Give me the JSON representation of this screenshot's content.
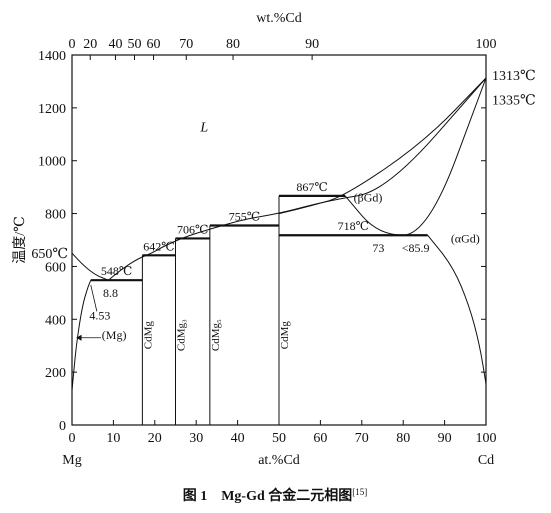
{
  "chart_data": {
    "type": "line",
    "title": "",
    "caption": "图 1　Mg-Gd 合金二元相图",
    "caption_ref": "[15]",
    "xlabel": "at.%Cd",
    "x2label": "wt.%Cd",
    "ylabel": "温度/℃",
    "xlim": [
      0,
      100
    ],
    "ylim": [
      0,
      1400
    ],
    "left_element": "Mg",
    "right_element": "Cd",
    "x_ticks": [
      0,
      10,
      20,
      30,
      40,
      50,
      60,
      70,
      80,
      90,
      100
    ],
    "y_ticks": [
      0,
      200,
      400,
      600,
      800,
      1000,
      1200,
      1400
    ],
    "x2_ticks": [
      {
        "label": "0",
        "at": 0
      },
      {
        "label": "20",
        "at": 4.4
      },
      {
        "label": "40",
        "at": 10.5
      },
      {
        "label": "50",
        "at": 15.1
      },
      {
        "label": "60",
        "at": 19.7
      },
      {
        "label": "70",
        "at": 27.6
      },
      {
        "label": "80",
        "at": 38.9
      },
      {
        "label": "90",
        "at": 58.0
      },
      {
        "label": "100",
        "at": 100
      }
    ],
    "series": [
      {
        "values": [
          [
            0,
            650
          ],
          [
            3,
            600
          ],
          [
            6,
            565
          ],
          [
            8.8,
            548
          ]
        ]
      },
      {
        "values": [
          [
            8.8,
            548
          ],
          [
            12,
            590
          ],
          [
            16,
            630
          ],
          [
            19,
            648
          ],
          [
            22,
            675
          ],
          [
            27,
            710
          ],
          [
            33,
            740
          ],
          [
            42,
            780
          ],
          [
            50,
            800
          ],
          [
            62,
            850
          ],
          [
            76,
            885
          ],
          [
            100,
            1313
          ]
        ]
      },
      {
        "values": [
          [
            50,
            800
          ],
          [
            58,
            830
          ],
          [
            66,
            867
          ],
          [
            85,
            1070
          ],
          [
            100,
            1313
          ]
        ]
      },
      {
        "values": [
          [
            66,
            867
          ],
          [
            74,
            718
          ],
          [
            85.9,
            718
          ],
          [
            100,
            1313
          ]
        ]
      },
      {
        "values": [
          [
            85.9,
            718
          ],
          [
            92,
            600
          ],
          [
            96,
            450
          ],
          [
            98.5,
            300
          ],
          [
            100,
            155
          ]
        ]
      },
      {
        "values": [
          [
            0,
            130
          ],
          [
            1,
            300
          ],
          [
            2.5,
            450
          ],
          [
            3.8,
            520
          ],
          [
            4.53,
            548
          ]
        ]
      }
    ],
    "isotherms": [
      {
        "label": "548℃",
        "y": 548,
        "x": [
          4.53,
          17
        ]
      },
      {
        "label": "642℃",
        "y": 642,
        "x": [
          17,
          25
        ]
      },
      {
        "label": "706℃",
        "y": 706,
        "x": [
          25,
          33.3
        ]
      },
      {
        "label": "755℃",
        "y": 755,
        "x": [
          33.3,
          50
        ]
      },
      {
        "label": "867℃",
        "y": 867,
        "x": [
          50,
          66
        ]
      },
      {
        "label": "718℃",
        "y": 718,
        "x": [
          50,
          85.9
        ]
      }
    ],
    "compounds": [
      {
        "label": "CdMg",
        "x": 17
      },
      {
        "label": "CdMg₃",
        "x": 25
      },
      {
        "label": "CdMg₅",
        "x": 33.3
      },
      {
        "label": "CdMg",
        "x": 50
      }
    ],
    "annotations": {
      "L": "L",
      "mg_melt": "650℃",
      "cd_melt_1": "1313℃",
      "cd_melt_2": "1335℃",
      "eutectic": "8.8",
      "solvus": "4.53",
      "mg_phase": "(Mg)",
      "beta": "(βGd)",
      "alpha": "(αGd)",
      "comp_73": "73",
      "comp_859": "<85.9"
    }
  }
}
